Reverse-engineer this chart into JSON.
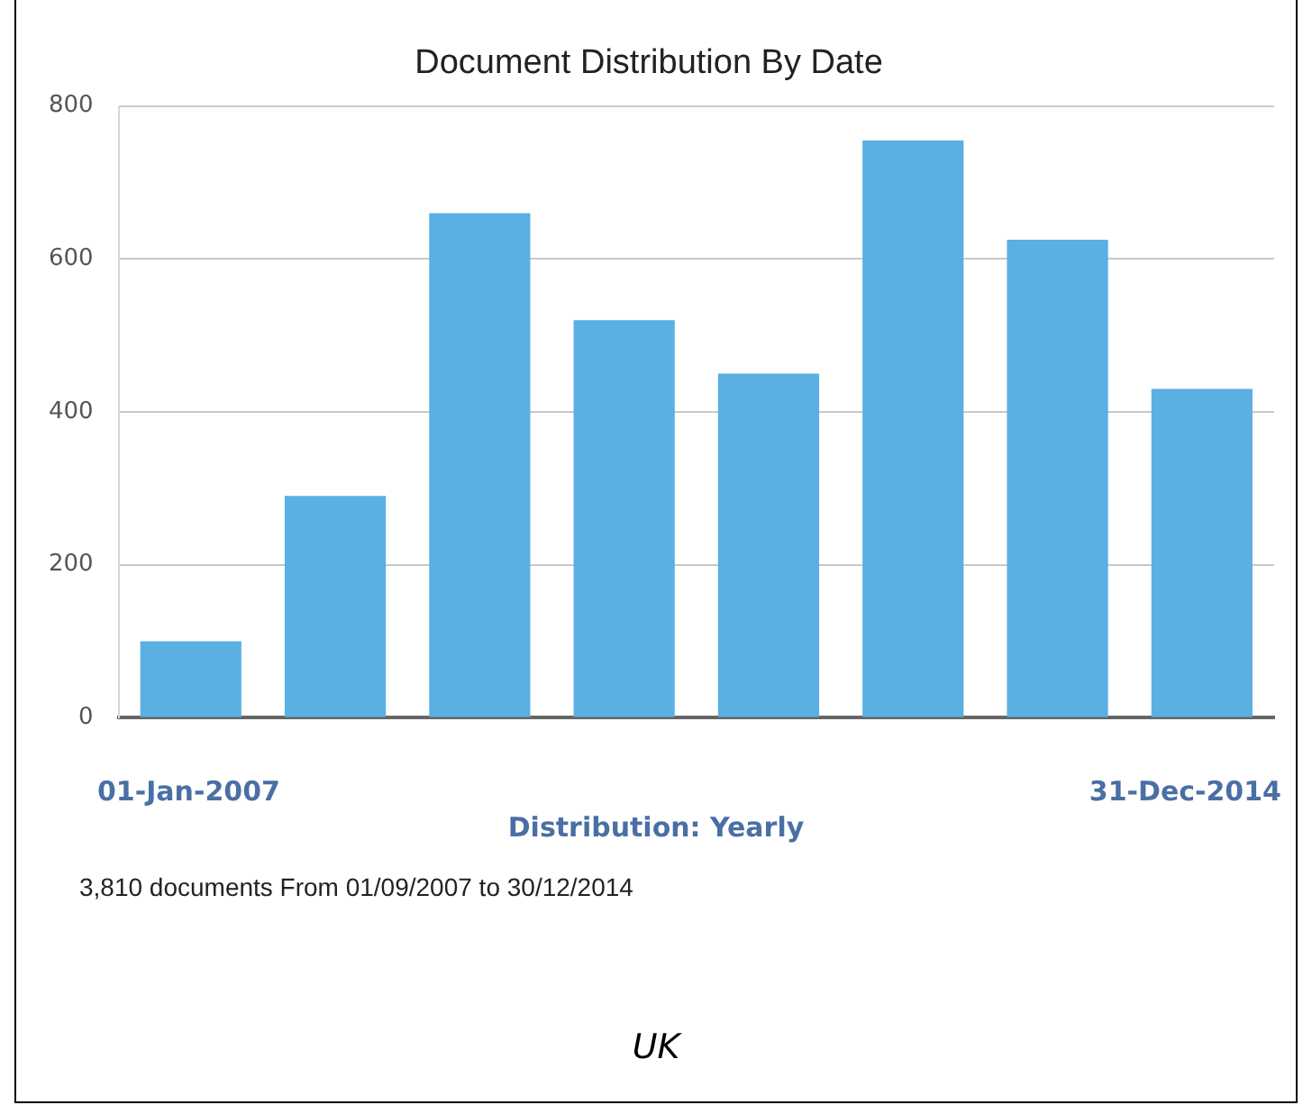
{
  "chart_data": {
    "type": "bar",
    "title": "Document Distribution By Date",
    "xlabel": "Distribution: Yearly",
    "categories": [
      null,
      null,
      null,
      null,
      null,
      null,
      null,
      null
    ],
    "values": [
      100,
      290,
      660,
      520,
      450,
      755,
      625,
      430
    ],
    "color": "#5aafe3",
    "ylim": [
      0,
      800
    ],
    "yticks": [
      0,
      200,
      400,
      600,
      800
    ],
    "grid": "y",
    "annotations": [
      "01-Jan-2007",
      "31-Dec-2014",
      "3,810 documents From 01/09/2007 to 30/12/2014",
      "UK"
    ]
  }
}
